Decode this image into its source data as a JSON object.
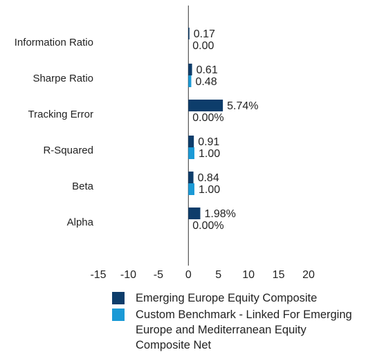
{
  "chart_data": {
    "type": "bar",
    "orientation": "horizontal",
    "categories": [
      "Information Ratio",
      "Sharpe Ratio",
      "Tracking Error",
      "R-Squared",
      "Beta",
      "Alpha"
    ],
    "series": [
      {
        "name": "Emerging Europe Equity Composite",
        "color": "#0d3d6b",
        "values": [
          0.17,
          0.61,
          5.74,
          0.91,
          0.84,
          1.98
        ],
        "value_labels": [
          "0.17",
          "0.61",
          "5.74%",
          "0.91",
          "0.84",
          "1.98%"
        ]
      },
      {
        "name": "Custom Benchmark - Linked For Emerging Europe and Mediterranean Equity Composite Net",
        "color": "#1b9ad6",
        "values": [
          0,
          0.48,
          0,
          1,
          1,
          0
        ],
        "value_labels": [
          "0.00",
          "0.48",
          "0.00%",
          "1.00",
          "1.00",
          "0.00%"
        ]
      }
    ],
    "xlim": [
      -15,
      20
    ],
    "xticks": [
      -15,
      -10,
      -5,
      0,
      5,
      10,
      15,
      20
    ]
  }
}
